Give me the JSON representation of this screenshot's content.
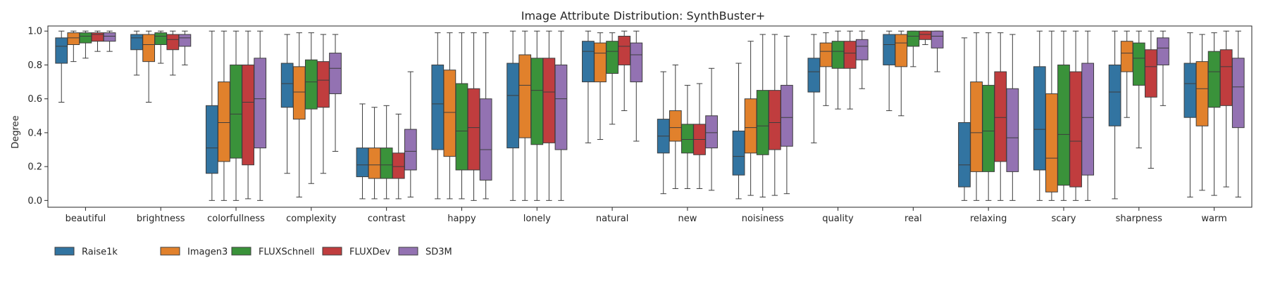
{
  "chart_data": {
    "type": "box",
    "title": "Image Attribute Distribution:  SynthBuster+",
    "xlabel": "",
    "ylabel": "Degree",
    "ylim": [
      -0.04,
      1.03
    ],
    "yticks": [
      0.0,
      0.2,
      0.4,
      0.6,
      0.8,
      1.0
    ],
    "ytick_labels": [
      "0.0",
      "0.2",
      "0.4",
      "0.6",
      "0.8",
      "1.0"
    ],
    "grid": false,
    "legend_position": "bottom-left",
    "categories": [
      "beautiful",
      "brightness",
      "colorfullness",
      "complexity",
      "contrast",
      "happy",
      "lonely",
      "natural",
      "new",
      "noisiness",
      "quality",
      "real",
      "relaxing",
      "scary",
      "sharpness",
      "warm"
    ],
    "series": [
      {
        "name": "Raise1k",
        "color": "#3274a1",
        "boxes": [
          [
            0.58,
            0.81,
            0.91,
            0.96,
            1.0
          ],
          [
            0.74,
            0.89,
            0.96,
            0.98,
            1.0
          ],
          [
            0.0,
            0.16,
            0.31,
            0.56,
            1.0
          ],
          [
            0.16,
            0.55,
            0.69,
            0.81,
            0.98
          ],
          [
            0.01,
            0.14,
            0.21,
            0.31,
            0.57
          ],
          [
            0.01,
            0.3,
            0.57,
            0.8,
            0.99
          ],
          [
            0.0,
            0.31,
            0.62,
            0.81,
            1.0
          ],
          [
            0.34,
            0.7,
            0.88,
            0.94,
            1.0
          ],
          [
            0.04,
            0.28,
            0.38,
            0.48,
            0.76
          ],
          [
            0.01,
            0.15,
            0.26,
            0.41,
            0.81
          ],
          [
            0.34,
            0.64,
            0.76,
            0.84,
            0.98
          ],
          [
            0.53,
            0.8,
            0.92,
            0.98,
            1.0
          ],
          [
            0.0,
            0.08,
            0.21,
            0.46,
            0.96
          ],
          [
            0.0,
            0.18,
            0.42,
            0.79,
            1.0
          ],
          [
            0.01,
            0.44,
            0.64,
            0.8,
            1.0
          ],
          [
            0.02,
            0.49,
            0.69,
            0.81,
            0.99
          ]
        ]
      },
      {
        "name": "Imagen3",
        "color": "#e1812c",
        "boxes": [
          [
            0.82,
            0.92,
            0.96,
            0.99,
            1.0
          ],
          [
            0.58,
            0.82,
            0.92,
            0.98,
            1.0
          ],
          [
            0.0,
            0.23,
            0.46,
            0.7,
            1.0
          ],
          [
            0.02,
            0.48,
            0.64,
            0.79,
            0.99
          ],
          [
            0.01,
            0.13,
            0.21,
            0.31,
            0.55
          ],
          [
            0.01,
            0.26,
            0.52,
            0.77,
            0.99
          ],
          [
            0.0,
            0.37,
            0.68,
            0.86,
            1.0
          ],
          [
            0.36,
            0.7,
            0.87,
            0.93,
            0.99
          ],
          [
            0.07,
            0.35,
            0.43,
            0.53,
            0.8
          ],
          [
            0.03,
            0.28,
            0.43,
            0.6,
            0.94
          ],
          [
            0.56,
            0.79,
            0.88,
            0.93,
            0.99
          ],
          [
            0.5,
            0.79,
            0.93,
            0.98,
            1.0
          ],
          [
            0.0,
            0.17,
            0.4,
            0.7,
            0.99
          ],
          [
            0.0,
            0.05,
            0.25,
            0.63,
            1.0
          ],
          [
            0.49,
            0.76,
            0.87,
            0.94,
            1.0
          ],
          [
            0.06,
            0.44,
            0.66,
            0.82,
            0.98
          ]
        ]
      },
      {
        "name": "FLUXSchnell",
        "color": "#3a923a",
        "boxes": [
          [
            0.84,
            0.93,
            0.97,
            0.99,
            1.0
          ],
          [
            0.81,
            0.92,
            0.97,
            0.99,
            1.0
          ],
          [
            0.0,
            0.25,
            0.51,
            0.8,
            1.0
          ],
          [
            0.1,
            0.54,
            0.7,
            0.83,
            0.99
          ],
          [
            0.01,
            0.13,
            0.21,
            0.31,
            0.56
          ],
          [
            0.01,
            0.18,
            0.41,
            0.69,
            0.99
          ],
          [
            0.0,
            0.33,
            0.65,
            0.84,
            1.0
          ],
          [
            0.45,
            0.75,
            0.88,
            0.94,
            0.99
          ],
          [
            0.07,
            0.28,
            0.36,
            0.45,
            0.68
          ],
          [
            0.02,
            0.27,
            0.44,
            0.65,
            0.98
          ],
          [
            0.54,
            0.78,
            0.88,
            0.94,
            1.0
          ],
          [
            0.79,
            0.91,
            0.97,
            1.0,
            1.0
          ],
          [
            0.0,
            0.17,
            0.41,
            0.68,
            0.99
          ],
          [
            0.0,
            0.09,
            0.39,
            0.8,
            1.0
          ],
          [
            0.31,
            0.68,
            0.84,
            0.93,
            1.0
          ],
          [
            0.03,
            0.55,
            0.76,
            0.88,
            0.99
          ]
        ]
      },
      {
        "name": "FLUXDev",
        "color": "#c03d3e",
        "boxes": [
          [
            0.88,
            0.94,
            0.98,
            0.99,
            1.0
          ],
          [
            0.74,
            0.89,
            0.95,
            0.98,
            1.0
          ],
          [
            0.01,
            0.21,
            0.58,
            0.8,
            1.0
          ],
          [
            0.16,
            0.55,
            0.71,
            0.82,
            0.98
          ],
          [
            0.01,
            0.13,
            0.2,
            0.28,
            0.51
          ],
          [
            0.0,
            0.18,
            0.43,
            0.66,
            0.99
          ],
          [
            0.0,
            0.34,
            0.64,
            0.84,
            1.0
          ],
          [
            0.53,
            0.8,
            0.91,
            0.97,
            1.0
          ],
          [
            0.07,
            0.27,
            0.36,
            0.45,
            0.69
          ],
          [
            0.03,
            0.3,
            0.46,
            0.65,
            0.98
          ],
          [
            0.54,
            0.78,
            0.87,
            0.94,
            1.0
          ],
          [
            0.92,
            0.95,
            0.98,
            1.0,
            1.0
          ],
          [
            0.0,
            0.23,
            0.49,
            0.76,
            0.99
          ],
          [
            0.0,
            0.08,
            0.35,
            0.76,
            1.0
          ],
          [
            0.19,
            0.61,
            0.79,
            0.89,
            1.0
          ],
          [
            0.08,
            0.56,
            0.79,
            0.89,
            1.0
          ]
        ]
      },
      {
        "name": "SD3M",
        "color": "#9372b2",
        "boxes": [
          [
            0.88,
            0.94,
            0.97,
            0.99,
            1.0
          ],
          [
            0.8,
            0.91,
            0.96,
            0.98,
            1.0
          ],
          [
            0.0,
            0.31,
            0.6,
            0.84,
            1.0
          ],
          [
            0.29,
            0.63,
            0.78,
            0.87,
            0.98
          ],
          [
            0.02,
            0.18,
            0.29,
            0.42,
            0.76
          ],
          [
            0.01,
            0.12,
            0.3,
            0.6,
            0.99
          ],
          [
            0.0,
            0.3,
            0.6,
            0.8,
            1.0
          ],
          [
            0.35,
            0.7,
            0.86,
            0.93,
            1.0
          ],
          [
            0.06,
            0.31,
            0.4,
            0.5,
            0.78
          ],
          [
            0.04,
            0.32,
            0.49,
            0.68,
            0.97
          ],
          [
            0.66,
            0.83,
            0.91,
            0.95,
            1.0
          ],
          [
            0.76,
            0.9,
            0.97,
            1.0,
            1.0
          ],
          [
            0.0,
            0.17,
            0.37,
            0.66,
            0.98
          ],
          [
            0.0,
            0.15,
            0.49,
            0.81,
            1.0
          ],
          [
            0.56,
            0.8,
            0.9,
            0.96,
            1.0
          ],
          [
            0.02,
            0.43,
            0.67,
            0.84,
            1.0
          ]
        ]
      }
    ]
  }
}
